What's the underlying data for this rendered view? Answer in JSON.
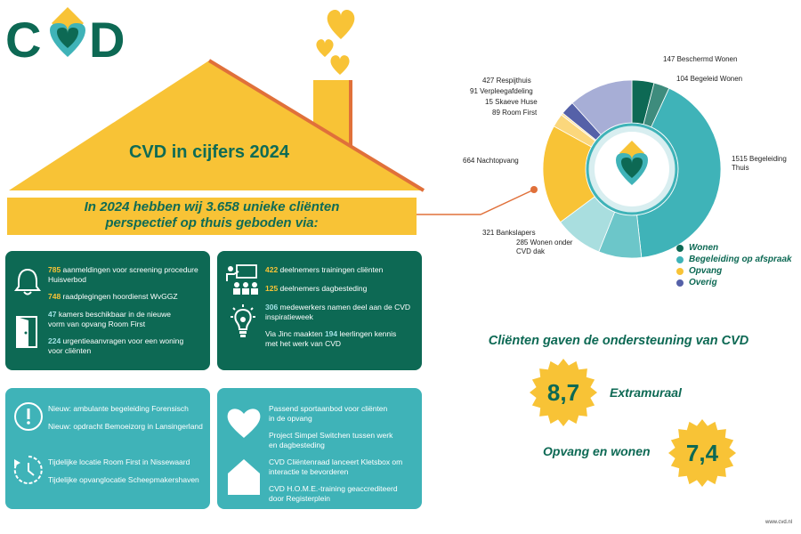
{
  "logo": {
    "text": "CVD"
  },
  "title": "CVD in cijfers 2024",
  "banner": {
    "line1": "In 2024 hebben wij 3.658 unieke cliënten",
    "line2": "perspectief op thuis geboden via:"
  },
  "box1": {
    "items": [
      {
        "num": "785",
        "text": " aanmeldingen voor screening procedure",
        "text2": "Huisverbod"
      },
      {
        "num": "748",
        "text": " raadplegingen hoordienst WvGGZ"
      },
      {
        "num": "47",
        "text": " kamers beschikbaar in de nieuwe",
        "text2": "vorm van opvang Room First"
      },
      {
        "num": "224",
        "text": " urgentieaanvragen voor een woning",
        "text2": "voor cliënten"
      }
    ]
  },
  "box2": {
    "items": [
      {
        "num": "422",
        "text": " deelnemers trainingen cliënten"
      },
      {
        "num": "125",
        "text": " deelnemers dagbesteding"
      },
      {
        "num": "306",
        "text": " medewerkers namen deel aan de CVD",
        "text2": "inspiratieweek"
      },
      {
        "pre": "Via Jinc maakten ",
        "num": "194",
        "text": " leerlingen kennis",
        "text2": "met het werk van CVD"
      }
    ]
  },
  "box3": {
    "items": [
      "Nieuw: ambulante begeleiding Forensisch",
      "Nieuw: opdracht Bemoeizorg in Lansingerland",
      "Tijdelijke locatie Room First in Nissewaard",
      "Tijdelijke opvanglocatie Scheepmakershaven"
    ]
  },
  "box4": {
    "items": [
      {
        "l1": "Passend sportaanbod voor cliënten",
        "l2": "in de opvang"
      },
      {
        "l1": "Project Simpel Switchen tussen werk",
        "l2": "en dagbesteding"
      },
      {
        "l1": "CVD Cliëntenraad lanceert Kletsbox om",
        "l2": "interactie te bevorderen"
      },
      {
        "l1": "CVD H.O.M.E.-training geaccrediteerd",
        "l2": "door Registerplein"
      }
    ]
  },
  "chart_data": {
    "type": "pie",
    "donut": true,
    "slices": [
      {
        "label": "147 Beschermd Wonen",
        "value": 147,
        "color": "#0d6954",
        "group": "Wonen"
      },
      {
        "label": "104 Begeleid Wonen",
        "value": 104,
        "color": "#3e8c7d",
        "group": "Wonen"
      },
      {
        "label": "1515 Begeleiding Thuis",
        "value": 1515,
        "color": "#3fb3b8",
        "group": "Begeleiding op afspraak"
      },
      {
        "label": "285 Wonen onder CVD dak",
        "value": 285,
        "color": "#6cc6c9",
        "group": "Begeleiding op afspraak"
      },
      {
        "label": "321 Bankslapers",
        "value": 321,
        "color": "#a9dedf",
        "group": "Begeleiding op afspraak"
      },
      {
        "label": "664 Nachtopvang",
        "value": 664,
        "color": "#f8c336",
        "group": "Opvang"
      },
      {
        "label": "89 Room First",
        "value": 89,
        "color": "#fbd77c",
        "group": "Opvang"
      },
      {
        "label": "15 Skaeve Huse",
        "value": 15,
        "color": "#fde3a2",
        "group": "Opvang"
      },
      {
        "label": "91 Verpleegafdeling",
        "value": 91,
        "color": "#5561a8",
        "group": "Overig"
      },
      {
        "label": "427 Respijthuis",
        "value": 427,
        "color": "#a7aed6",
        "group": "Overig"
      }
    ],
    "legend": [
      {
        "label": "Wonen",
        "color": "#0d6954"
      },
      {
        "label": "Begeleiding op afspraak",
        "color": "#3fb3b8"
      },
      {
        "label": "Opvang",
        "color": "#f8c336"
      },
      {
        "label": "Overig",
        "color": "#5561a8"
      }
    ],
    "legend_position": "bottom-right"
  },
  "ratings": {
    "title": "Cliënten gaven de ondersteuning van CVD",
    "items": [
      {
        "value": "8,7",
        "label": "Extramuraal"
      },
      {
        "value": "7,4",
        "label": "Opvang en wonen"
      }
    ]
  },
  "footer": "www.cvd.nl",
  "colors": {
    "dark_green": "#0d6954",
    "teal": "#3fb3b8",
    "yellow": "#f8c336",
    "orange_line": "#e0703a"
  }
}
